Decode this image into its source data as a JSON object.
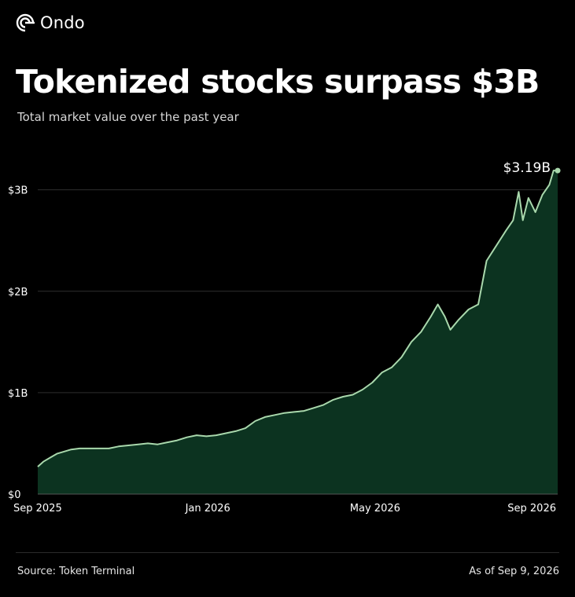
{
  "brand": {
    "name": "Ondo",
    "icon": "ondo-logo-icon"
  },
  "header": {
    "title": "Tokenized stocks surpass $3B",
    "subtitle": "Total market value over the past year"
  },
  "footer": {
    "source": "Source: Token Terminal",
    "as_of": "As of Sep 9, 2026"
  },
  "colors": {
    "background": "#000000",
    "line": "#a9d8ac",
    "area": "#0c3320",
    "grid": "#2e2e2e",
    "text": "#ffffff"
  },
  "chart_data": {
    "type": "area",
    "title": "Tokenized stocks surpass $3B",
    "subtitle": "Total market value over the past year",
    "xlabel": "",
    "ylabel": "",
    "x_range": [
      "2025-09",
      "2026-09"
    ],
    "ylim": [
      0,
      3.4
    ],
    "y_unit": "billion USD",
    "grid": "horizontal",
    "legend": "none",
    "y_ticks": [
      {
        "value": 0,
        "label": "$0"
      },
      {
        "value": 1,
        "label": "$1B"
      },
      {
        "value": 2,
        "label": "$2B"
      },
      {
        "value": 3,
        "label": "$3B"
      }
    ],
    "x_ticks": [
      {
        "x": "2025-09",
        "label": "Sep 2025"
      },
      {
        "x": "2026-01",
        "label": "Jan 2026"
      },
      {
        "x": "2026-05",
        "label": "May 2026"
      },
      {
        "x": "2026-09",
        "label": "Sep 2026"
      }
    ],
    "annotation": {
      "x": "2026-09-09",
      "value": 3.19,
      "label": "$3.19B"
    },
    "series": [
      {
        "values": [
          [
            "2025-09-01",
            0.27
          ],
          [
            "2025-09-05",
            0.32
          ],
          [
            "2025-09-10",
            0.36
          ],
          [
            "2025-09-15",
            0.4
          ],
          [
            "2025-09-20",
            0.42
          ],
          [
            "2025-09-25",
            0.44
          ],
          [
            "2025-10-01",
            0.45
          ],
          [
            "2025-10-08",
            0.45
          ],
          [
            "2025-10-15",
            0.45
          ],
          [
            "2025-10-22",
            0.45
          ],
          [
            "2025-10-29",
            0.47
          ],
          [
            "2025-11-05",
            0.48
          ],
          [
            "2025-11-12",
            0.49
          ],
          [
            "2025-11-19",
            0.5
          ],
          [
            "2025-11-26",
            0.49
          ],
          [
            "2025-12-03",
            0.51
          ],
          [
            "2025-12-10",
            0.53
          ],
          [
            "2025-12-17",
            0.56
          ],
          [
            "2025-12-24",
            0.58
          ],
          [
            "2025-12-31",
            0.57
          ],
          [
            "2026-01-07",
            0.58
          ],
          [
            "2026-01-14",
            0.6
          ],
          [
            "2026-01-21",
            0.62
          ],
          [
            "2026-01-28",
            0.65
          ],
          [
            "2026-02-04",
            0.72
          ],
          [
            "2026-02-11",
            0.76
          ],
          [
            "2026-02-18",
            0.78
          ],
          [
            "2026-02-25",
            0.8
          ],
          [
            "2026-03-04",
            0.81
          ],
          [
            "2026-03-11",
            0.82
          ],
          [
            "2026-03-18",
            0.85
          ],
          [
            "2026-03-25",
            0.88
          ],
          [
            "2026-04-01",
            0.93
          ],
          [
            "2026-04-08",
            0.96
          ],
          [
            "2026-04-15",
            0.98
          ],
          [
            "2026-04-22",
            1.03
          ],
          [
            "2026-04-29",
            1.1
          ],
          [
            "2026-05-06",
            1.2
          ],
          [
            "2026-05-13",
            1.25
          ],
          [
            "2026-05-20",
            1.35
          ],
          [
            "2026-05-27",
            1.5
          ],
          [
            "2026-06-03",
            1.6
          ],
          [
            "2026-06-10",
            1.75
          ],
          [
            "2026-06-15",
            1.87
          ],
          [
            "2026-06-20",
            1.75
          ],
          [
            "2026-06-24",
            1.62
          ],
          [
            "2026-06-30",
            1.72
          ],
          [
            "2026-07-07",
            1.82
          ],
          [
            "2026-07-14",
            1.87
          ],
          [
            "2026-07-20",
            2.3
          ],
          [
            "2026-07-27",
            2.45
          ],
          [
            "2026-08-03",
            2.6
          ],
          [
            "2026-08-08",
            2.7
          ],
          [
            "2026-08-12",
            2.98
          ],
          [
            "2026-08-15",
            2.7
          ],
          [
            "2026-08-19",
            2.92
          ],
          [
            "2026-08-24",
            2.78
          ],
          [
            "2026-08-29",
            2.95
          ],
          [
            "2026-09-03",
            3.05
          ],
          [
            "2026-09-06",
            3.19
          ],
          [
            "2026-09-09",
            3.19
          ]
        ]
      }
    ]
  }
}
